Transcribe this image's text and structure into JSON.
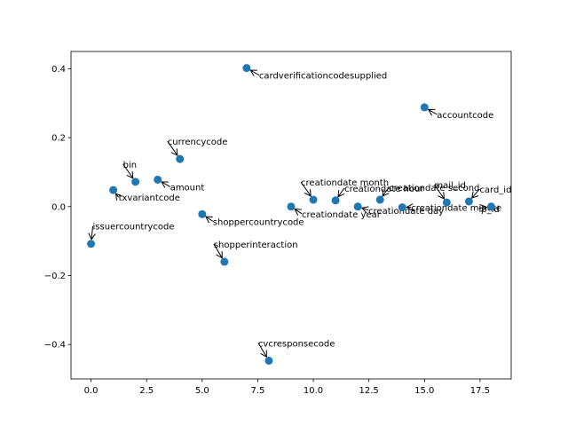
{
  "chart_data": {
    "type": "scatter",
    "title": "",
    "xlabel": "",
    "ylabel": "",
    "xlim": [
      -0.9,
      18.9
    ],
    "ylim": [
      -0.5,
      0.45
    ],
    "xticks": [
      0,
      2.5,
      5,
      7.5,
      10,
      12.5,
      15,
      17.5
    ],
    "xtick_labels": [
      "0.0",
      "2.5",
      "5.0",
      "7.5",
      "10.0",
      "12.5",
      "15.0",
      "17.5"
    ],
    "yticks": [
      -0.4,
      -0.2,
      0.0,
      0.2,
      0.4
    ],
    "ytick_labels": [
      "−0.4",
      "−0.2",
      "0.0",
      "0.2",
      "0.4"
    ],
    "color": "#1f77b4",
    "points": [
      {
        "x": 0,
        "y": -0.108,
        "label": "issuercountrycode"
      },
      {
        "x": 1,
        "y": 0.048,
        "label": "txvariantcode"
      },
      {
        "x": 2,
        "y": 0.072,
        "label": "bin"
      },
      {
        "x": 3,
        "y": 0.078,
        "label": "amount"
      },
      {
        "x": 4,
        "y": 0.138,
        "label": "currencycode"
      },
      {
        "x": 5,
        "y": -0.022,
        "label": "shoppercountrycode"
      },
      {
        "x": 6,
        "y": -0.16,
        "label": "shopperinteraction"
      },
      {
        "x": 7,
        "y": 0.402,
        "label": "cardverificationcodesupplied"
      },
      {
        "x": 8,
        "y": -0.447,
        "label": "cvcresponsecode"
      },
      {
        "x": 9,
        "y": 0.0,
        "label": "creationdate year"
      },
      {
        "x": 10,
        "y": 0.02,
        "label": "creationdate month"
      },
      {
        "x": 11,
        "y": 0.018,
        "label": "creationdate hour"
      },
      {
        "x": 12,
        "y": 0.0,
        "label": "creationdate day"
      },
      {
        "x": 13,
        "y": 0.02,
        "label": "creationdate second"
      },
      {
        "x": 14,
        "y": -0.002,
        "label": "creationdate minute"
      },
      {
        "x": 15,
        "y": 0.288,
        "label": "accountcode"
      },
      {
        "x": 16,
        "y": 0.012,
        "label": "mail_id"
      },
      {
        "x": 17,
        "y": 0.015,
        "label": "card_id"
      },
      {
        "x": 18,
        "y": 0.0,
        "label": "ip_id"
      }
    ]
  }
}
